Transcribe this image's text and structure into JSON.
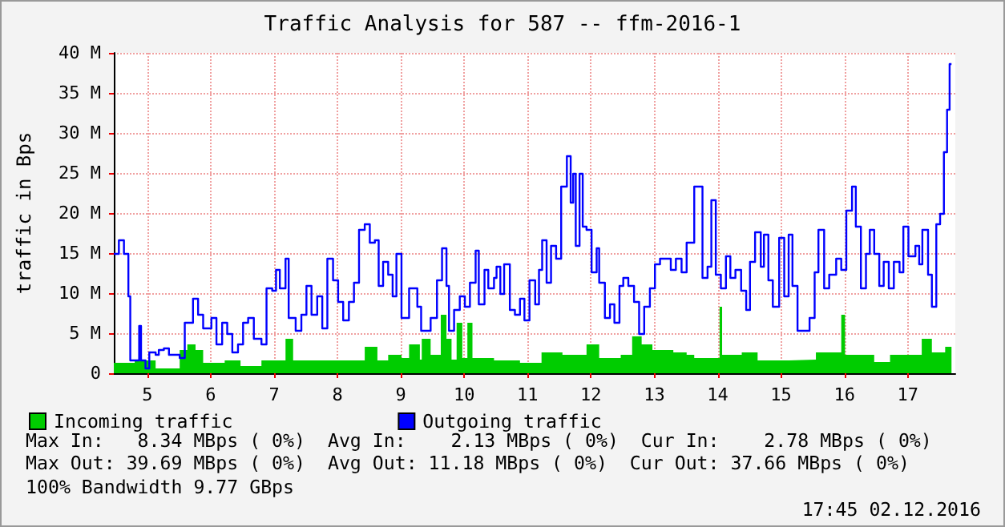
{
  "chart_data": {
    "type": "area",
    "title": "Traffic Analysis for 587 -- ffm-2016-1",
    "ylabel": "traffic in Bps",
    "xlim": [
      4.47,
      17.75
    ],
    "xticks": [
      5,
      6,
      7,
      8,
      9,
      10,
      11,
      12,
      13,
      14,
      15,
      16,
      17
    ],
    "ylim": [
      0,
      40
    ],
    "yticks": [
      0,
      {
        "value": 5,
        "label": "5 M"
      },
      {
        "value": 10,
        "label": "10 M"
      },
      {
        "value": 15,
        "label": "15 M"
      },
      {
        "value": 20,
        "label": "20 M"
      },
      {
        "value": 25,
        "label": "25 M"
      },
      {
        "value": 30,
        "label": "30 M"
      },
      {
        "value": 35,
        "label": "35 M"
      },
      {
        "value": 40,
        "label": "40 M"
      }
    ],
    "grid": true,
    "legend": "bottom left",
    "series": [
      {
        "name": "Incoming traffic",
        "type": "area",
        "color": "#00cc00",
        "x": [
          4.47,
          4.8,
          5.13,
          5.51,
          5.63,
          5.76,
          5.88,
          6.22,
          6.47,
          6.8,
          7.18,
          7.3,
          7.8,
          8.43,
          8.63,
          8.8,
          9.01,
          9.13,
          9.3,
          9.33,
          9.47,
          9.63,
          9.72,
          9.8,
          9.88,
          9.97,
          10.05,
          10.13,
          10.47,
          10.88,
          11.22,
          11.55,
          11.93,
          12.13,
          12.47,
          12.65,
          12.8,
          12.97,
          13.3,
          13.51,
          13.63,
          14.03,
          14.07,
          14.38,
          14.63,
          15.13,
          15.55,
          15.95,
          16.01,
          16.47,
          16.72,
          17.05,
          17.22,
          17.38,
          17.59,
          17.69
        ],
        "values": [
          1.3,
          1.6,
          0.6,
          2.9,
          3.6,
          2.9,
          1.3,
          1.6,
          0.9,
          1.6,
          4.3,
          1.6,
          1.6,
          3.3,
          1.6,
          2.3,
          1.9,
          3.6,
          1.7,
          4.3,
          2.3,
          7.3,
          4.3,
          1.7,
          6.3,
          1.9,
          6.3,
          1.9,
          1.6,
          1.3,
          2.6,
          2.3,
          3.6,
          1.9,
          2.3,
          4.6,
          3.6,
          2.9,
          2.6,
          2.3,
          1.9,
          8.3,
          2.3,
          2.6,
          1.6,
          1.7,
          2.6,
          7.3,
          2.3,
          1.4,
          2.3,
          2.3,
          4.3,
          2.6,
          3.3,
          2.7
        ]
      },
      {
        "name": "Outgoing traffic",
        "type": "step",
        "color": "#0000ff",
        "x": [
          4.47,
          4.55,
          4.63,
          4.7,
          4.73,
          4.8,
          4.87,
          4.9,
          4.97,
          5.03,
          5.13,
          5.18,
          5.26,
          5.34,
          5.51,
          5.59,
          5.72,
          5.8,
          5.88,
          6.01,
          6.09,
          6.18,
          6.26,
          6.34,
          6.43,
          6.51,
          6.59,
          6.68,
          6.8,
          6.88,
          6.97,
          7.03,
          7.09,
          7.18,
          7.23,
          7.34,
          7.43,
          7.51,
          7.59,
          7.68,
          7.76,
          7.84,
          7.93,
          8.01,
          8.09,
          8.18,
          8.26,
          8.34,
          8.43,
          8.51,
          8.59,
          8.65,
          8.72,
          8.8,
          8.87,
          8.93,
          9.01,
          9.05,
          9.13,
          9.26,
          9.32,
          9.38,
          9.47,
          9.57,
          9.65,
          9.72,
          9.76,
          9.84,
          9.93,
          10.01,
          10.09,
          10.18,
          10.23,
          10.32,
          10.38,
          10.47,
          10.51,
          10.57,
          10.63,
          10.72,
          10.8,
          10.88,
          10.95,
          11.03,
          11.12,
          11.18,
          11.23,
          11.3,
          11.37,
          11.45,
          11.53,
          11.62,
          11.68,
          11.72,
          11.76,
          11.82,
          11.87,
          11.93,
          12.01,
          12.09,
          12.13,
          12.22,
          12.3,
          12.37,
          12.45,
          12.51,
          12.59,
          12.68,
          12.76,
          12.84,
          12.93,
          13.01,
          13.09,
          13.18,
          13.26,
          13.34,
          13.43,
          13.51,
          13.55,
          13.63,
          13.7,
          13.76,
          13.84,
          13.9,
          13.97,
          14.05,
          14.13,
          14.2,
          14.28,
          14.37,
          14.45,
          14.51,
          14.59,
          14.68,
          14.73,
          14.8,
          14.87,
          14.97,
          15.05,
          15.12,
          15.18,
          15.26,
          15.34,
          15.45,
          15.53,
          15.59,
          15.68,
          15.76,
          15.87,
          15.95,
          16.03,
          16.12,
          16.18,
          16.26,
          16.34,
          16.4,
          16.47,
          16.55,
          16.62,
          16.7,
          16.78,
          16.87,
          16.93,
          17.01,
          17.12,
          17.18,
          17.23,
          17.32,
          17.38,
          17.45,
          17.51,
          17.57,
          17.62,
          17.66,
          17.69
        ],
        "values": [
          14.9,
          16.6,
          14.9,
          9.6,
          1.6,
          1.6,
          5.9,
          1.6,
          0.6,
          2.6,
          2.3,
          2.9,
          3.1,
          2.3,
          1.9,
          6.3,
          9.3,
          7.3,
          5.6,
          6.9,
          3.6,
          6.3,
          4.9,
          2.6,
          3.6,
          6.3,
          6.9,
          4.3,
          3.6,
          10.6,
          10.3,
          12.9,
          10.6,
          14.3,
          6.9,
          5.3,
          7.3,
          10.9,
          7.3,
          9.6,
          5.6,
          14.3,
          11.6,
          8.9,
          6.6,
          8.9,
          11.3,
          17.9,
          18.6,
          16.3,
          16.6,
          10.9,
          13.9,
          12.3,
          9.6,
          14.9,
          6.9,
          6.9,
          10.6,
          8.3,
          5.3,
          5.3,
          6.9,
          11.6,
          15.6,
          10.9,
          5.3,
          7.9,
          9.6,
          8.3,
          11.3,
          15.3,
          8.6,
          12.9,
          10.6,
          11.9,
          13.3,
          9.9,
          13.6,
          7.9,
          7.3,
          9.3,
          6.6,
          11.6,
          8.6,
          12.9,
          16.6,
          11.3,
          15.9,
          14.3,
          23.3,
          27.1,
          21.3,
          24.9,
          15.9,
          24.9,
          18.3,
          17.9,
          12.6,
          15.6,
          11.3,
          6.9,
          8.6,
          6.3,
          10.9,
          11.9,
          10.9,
          8.9,
          4.9,
          8.3,
          10.6,
          13.6,
          14.3,
          14.3,
          12.9,
          14.3,
          12.6,
          16.3,
          16.3,
          23.3,
          23.3,
          11.9,
          13.3,
          21.6,
          12.3,
          10.6,
          14.6,
          11.9,
          12.9,
          10.3,
          7.9,
          13.9,
          17.6,
          13.3,
          17.3,
          11.6,
          8.3,
          16.9,
          9.6,
          17.3,
          10.9,
          5.3,
          5.3,
          6.9,
          12.6,
          17.9,
          10.6,
          12.3,
          14.3,
          12.9,
          20.3,
          23.3,
          18.3,
          10.6,
          14.9,
          17.9,
          14.9,
          10.9,
          13.9,
          10.6,
          13.9,
          12.6,
          18.3,
          14.6,
          15.9,
          13.6,
          17.9,
          12.3,
          8.3,
          18.6,
          19.9,
          27.6,
          32.9,
          38.6,
          38.6
        ]
      }
    ],
    "annotations": [
      "Max In:   8.34 MBps ( 0%)  Avg In:    2.13 MBps ( 0%)  Cur In:    2.78 MBps ( 0%)",
      "Max Out: 39.69 MBps ( 0%)  Avg Out: 11.18 MBps ( 0%)  Cur Out: 37.66 MBps ( 0%)",
      "100% Bandwidth 9.77 GBps",
      "17:45 02.12.2016"
    ]
  }
}
